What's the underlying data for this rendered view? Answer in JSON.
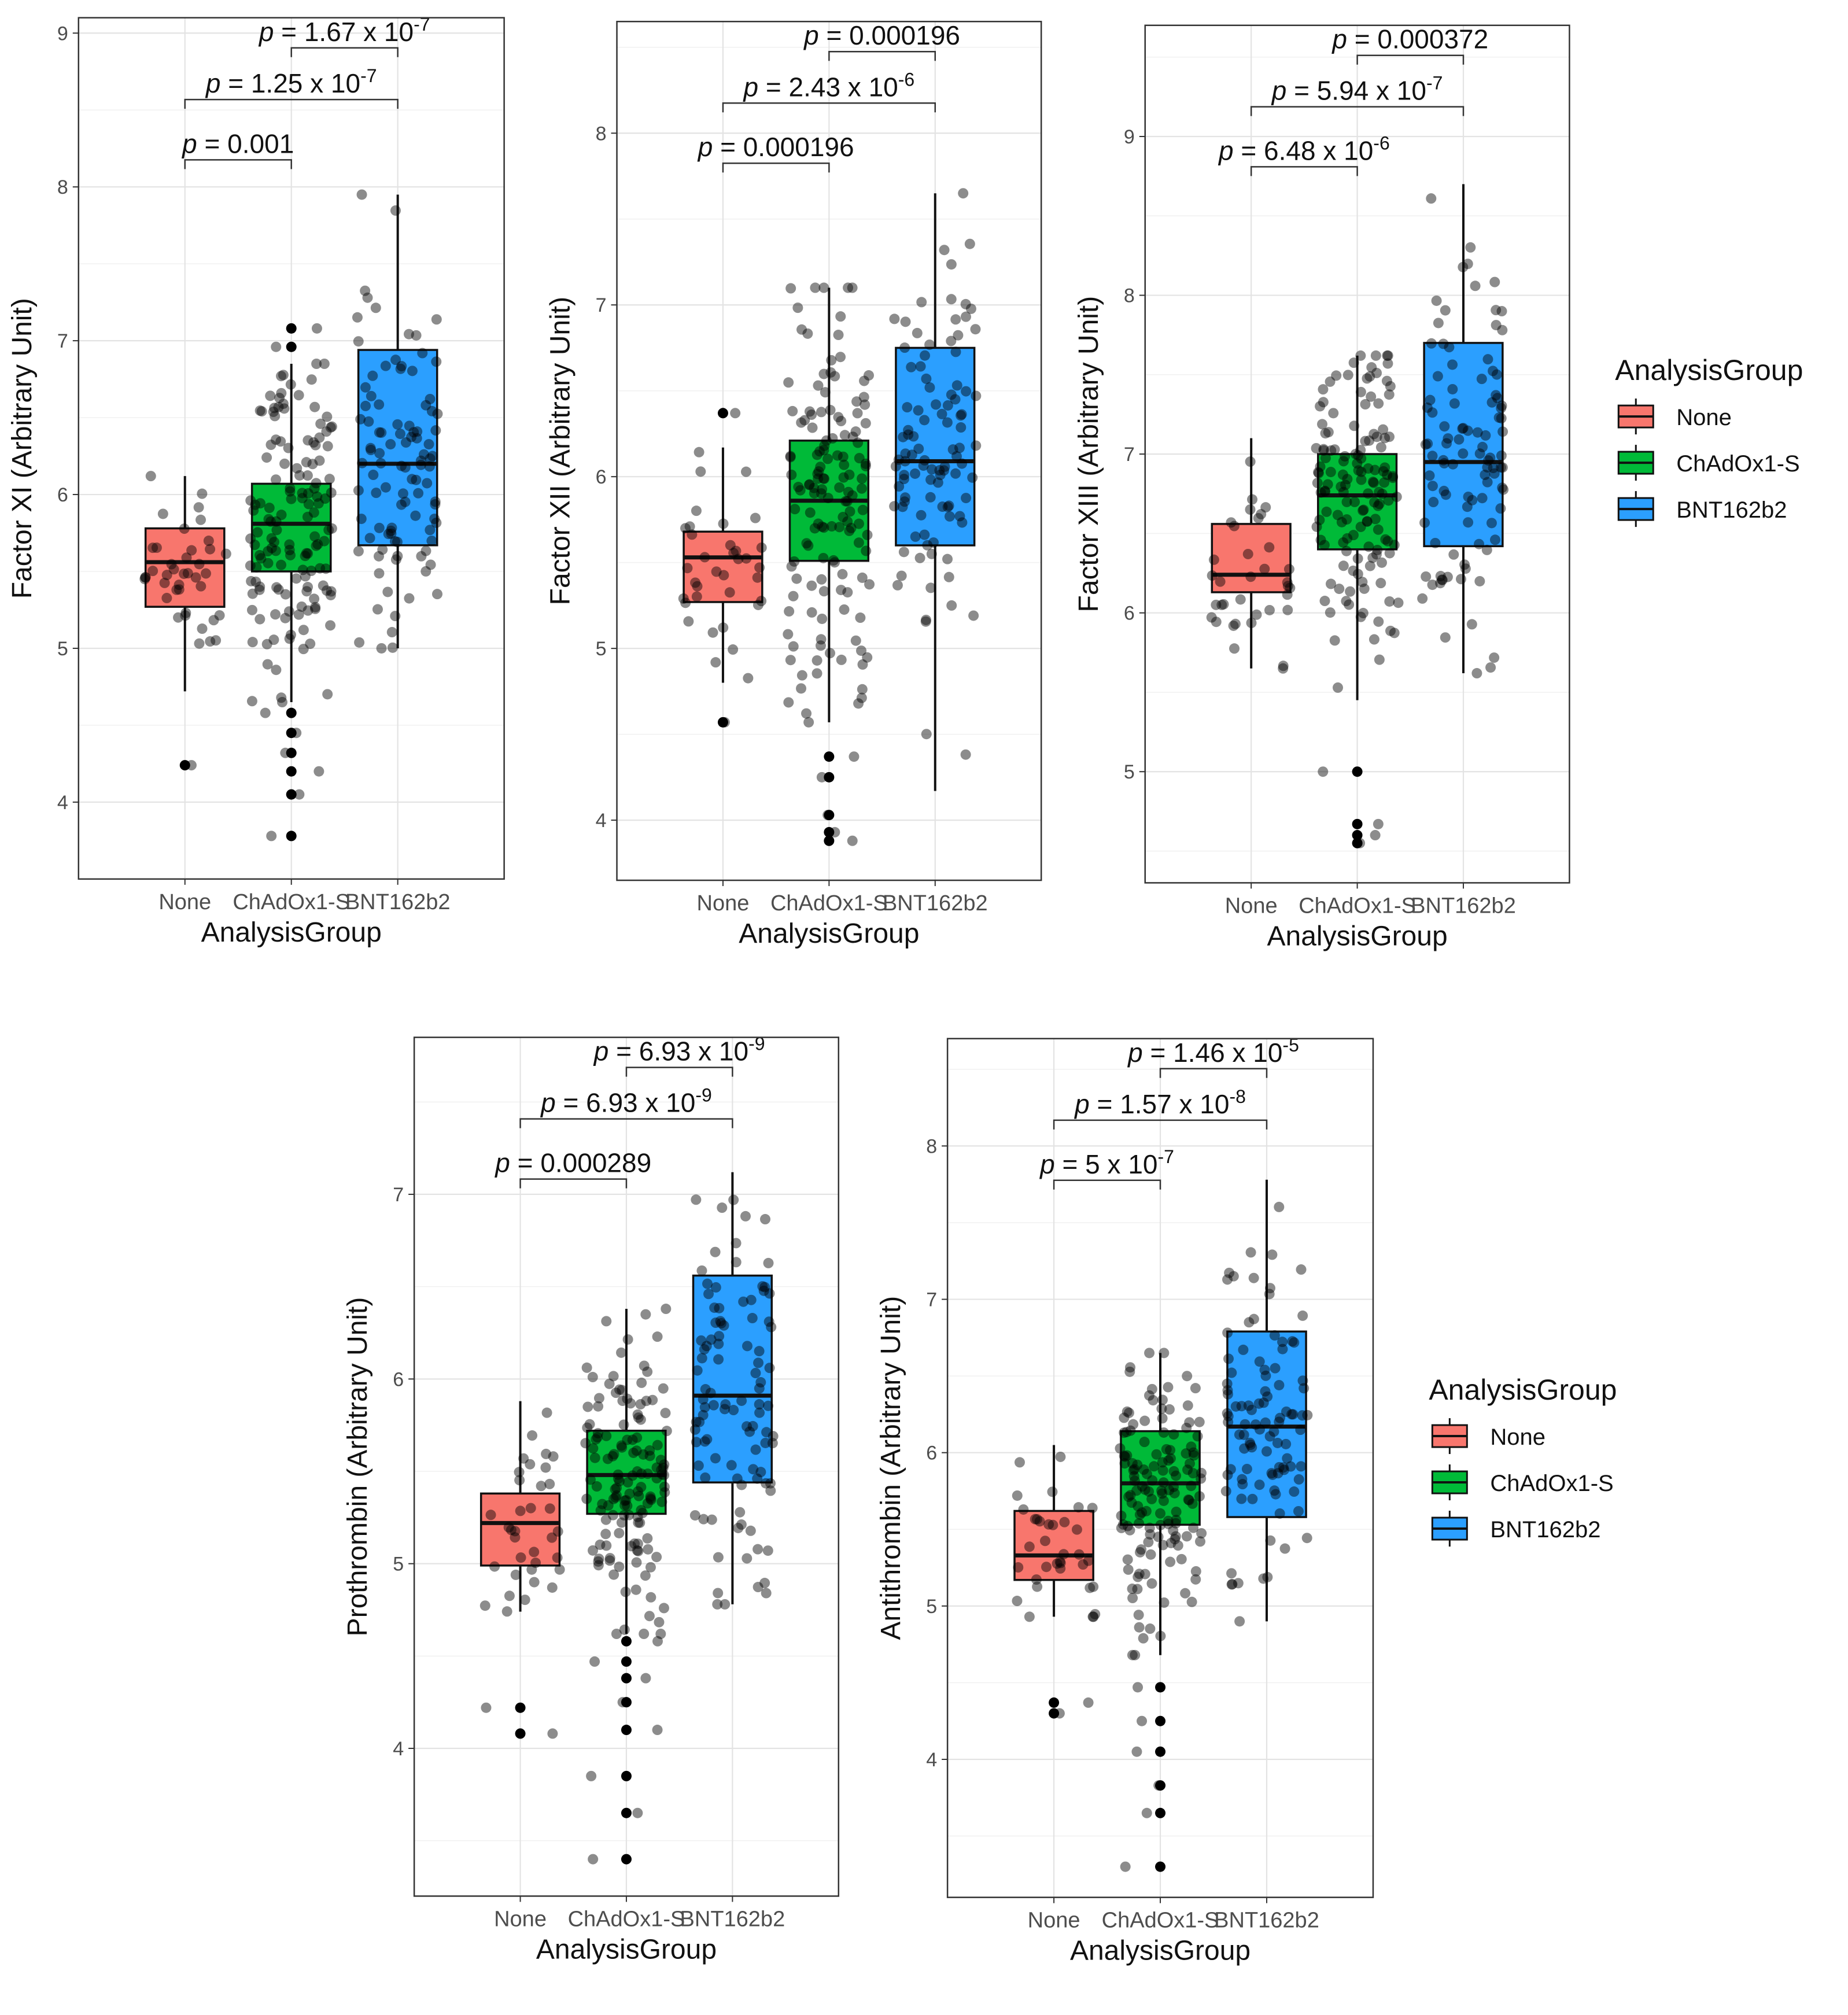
{
  "figure": {
    "x_axis_label": "AnalysisGroup",
    "legend_title": "AnalysisGroup",
    "groups": [
      "None",
      "ChAdOx1-S",
      "BNT162b2"
    ],
    "group_colors": [
      "#F8766D",
      "#00BA38",
      "#2B9FFF"
    ]
  },
  "chart_data": [
    {
      "type": "box",
      "id": "factor-xi",
      "ylabel": "Factor XI (Arbitrary Unit)",
      "xlabel": "AnalysisGroup",
      "categories": [
        "None",
        "ChAdOx1-S",
        "BNT162b2"
      ],
      "ylim": [
        3.5,
        9.1
      ],
      "yticks": [
        4,
        5,
        6,
        7,
        8,
        9
      ],
      "boxes": [
        {
          "group": "None",
          "whisker_low": 4.72,
          "q1": 5.27,
          "median": 5.56,
          "q3": 5.78,
          "whisker_high": 6.12,
          "outliers": [
            4.24
          ]
        },
        {
          "group": "ChAdOx1-S",
          "whisker_low": 4.65,
          "q1": 5.5,
          "median": 5.81,
          "q3": 6.07,
          "whisker_high": 6.85,
          "outliers": [
            4.58,
            4.45,
            4.32,
            4.2,
            4.05,
            3.78,
            7.08,
            6.96
          ]
        },
        {
          "group": "BNT162b2",
          "whisker_low": 5.0,
          "q1": 5.67,
          "median": 6.2,
          "q3": 6.94,
          "whisker_high": 7.95,
          "outliers": []
        }
      ],
      "comparisons": [
        {
          "pair": [
            "None",
            "ChAdOx1-S"
          ],
          "label_lead": "p",
          "label_text": " = 0.001",
          "label_exp": ""
        },
        {
          "pair": [
            "None",
            "BNT162b2"
          ],
          "label_lead": "p",
          "label_text": " = 1.25 x 10",
          "label_exp": "-7"
        },
        {
          "pair": [
            "ChAdOx1-S",
            "BNT162b2"
          ],
          "label_lead": "p",
          "label_text": " = 1.67 x 10",
          "label_exp": "-7"
        }
      ],
      "jitter": [
        {
          "group": "None",
          "n": 40,
          "spread": 0.32
        },
        {
          "group": "ChAdOx1-S",
          "n": 140,
          "spread": 0.5
        },
        {
          "group": "BNT162b2",
          "n": 100,
          "spread": 0.55
        }
      ]
    },
    {
      "type": "box",
      "id": "factor-xii",
      "ylabel": "Factor XII (Arbitrary Unit)",
      "xlabel": "AnalysisGroup",
      "categories": [
        "None",
        "ChAdOx1-S",
        "BNT162b2"
      ],
      "ylim": [
        3.65,
        8.65
      ],
      "yticks": [
        4,
        5,
        6,
        7,
        8
      ],
      "boxes": [
        {
          "group": "None",
          "whisker_low": 4.8,
          "q1": 5.27,
          "median": 5.53,
          "q3": 5.68,
          "whisker_high": 6.17,
          "outliers": [
            4.57,
            6.37
          ]
        },
        {
          "group": "ChAdOx1-S",
          "whisker_low": 4.57,
          "q1": 5.51,
          "median": 5.86,
          "q3": 6.21,
          "whisker_high": 7.1,
          "outliers": [
            4.37,
            4.25,
            4.03,
            3.93,
            3.88
          ]
        },
        {
          "group": "BNT162b2",
          "whisker_low": 4.17,
          "q1": 5.6,
          "median": 6.09,
          "q3": 6.75,
          "whisker_high": 7.65,
          "outliers": []
        }
      ],
      "comparisons": [
        {
          "pair": [
            "None",
            "ChAdOx1-S"
          ],
          "label_lead": "p",
          "label_text": " = 0.000196",
          "label_exp": ""
        },
        {
          "pair": [
            "None",
            "BNT162b2"
          ],
          "label_lead": "p",
          "label_text": " = 2.43 x 10",
          "label_exp": "-6"
        },
        {
          "pair": [
            "ChAdOx1-S",
            "BNT162b2"
          ],
          "label_lead": "p",
          "label_text": " = 0.000196",
          "label_exp": ""
        }
      ],
      "jitter": [
        {
          "group": "None",
          "n": 35,
          "spread": 0.3
        },
        {
          "group": "ChAdOx1-S",
          "n": 140,
          "spread": 0.55
        },
        {
          "group": "BNT162b2",
          "n": 100,
          "spread": 0.6
        }
      ]
    },
    {
      "type": "box",
      "id": "factor-xiii",
      "ylabel": "Factor XIII (Arbitrary Unit)",
      "xlabel": "AnalysisGroup",
      "categories": [
        "None",
        "ChAdOx1-S",
        "BNT162b2"
      ],
      "ylim": [
        4.3,
        9.7
      ],
      "yticks": [
        5,
        6,
        7,
        8,
        9
      ],
      "boxes": [
        {
          "group": "None",
          "whisker_low": 5.65,
          "q1": 6.13,
          "median": 6.24,
          "q3": 6.56,
          "whisker_high": 7.1,
          "outliers": []
        },
        {
          "group": "ChAdOx1-S",
          "whisker_low": 5.45,
          "q1": 6.4,
          "median": 6.74,
          "q3": 7.0,
          "whisker_high": 7.62,
          "outliers": [
            5.0,
            4.67,
            4.6,
            4.55
          ]
        },
        {
          "group": "BNT162b2",
          "whisker_low": 5.62,
          "q1": 6.42,
          "median": 6.95,
          "q3": 7.7,
          "whisker_high": 8.7,
          "outliers": []
        }
      ],
      "comparisons": [
        {
          "pair": [
            "None",
            "ChAdOx1-S"
          ],
          "label_lead": "p",
          "label_text": " = 6.48 x 10",
          "label_exp": "-6"
        },
        {
          "pair": [
            "None",
            "BNT162b2"
          ],
          "label_lead": "p",
          "label_text": " = 5.94 x 10",
          "label_exp": "-7"
        },
        {
          "pair": [
            "ChAdOx1-S",
            "BNT162b2"
          ],
          "label_lead": "p",
          "label_text": " = 0.000372",
          "label_exp": ""
        }
      ],
      "jitter": [
        {
          "group": "None",
          "n": 35,
          "spread": 0.3
        },
        {
          "group": "ChAdOx1-S",
          "n": 140,
          "spread": 0.5
        },
        {
          "group": "BNT162b2",
          "n": 100,
          "spread": 0.65
        }
      ]
    },
    {
      "type": "box",
      "id": "prothrombin",
      "ylabel": "Prothrombin (Arbitrary Unit)",
      "xlabel": "AnalysisGroup",
      "categories": [
        "None",
        "ChAdOx1-S",
        "BNT162b2"
      ],
      "ylim": [
        3.2,
        7.85
      ],
      "yticks": [
        4,
        5,
        6,
        7
      ],
      "boxes": [
        {
          "group": "None",
          "whisker_low": 4.74,
          "q1": 4.99,
          "median": 5.22,
          "q3": 5.38,
          "whisker_high": 5.88,
          "outliers": [
            4.22,
            4.08
          ]
        },
        {
          "group": "ChAdOx1-S",
          "whisker_low": 4.62,
          "q1": 5.27,
          "median": 5.48,
          "q3": 5.72,
          "whisker_high": 6.38,
          "outliers": [
            4.58,
            4.47,
            4.38,
            4.25,
            4.1,
            3.85,
            3.65,
            3.4
          ]
        },
        {
          "group": "BNT162b2",
          "whisker_low": 4.78,
          "q1": 5.44,
          "median": 5.91,
          "q3": 6.56,
          "whisker_high": 7.12,
          "outliers": []
        }
      ],
      "comparisons": [
        {
          "pair": [
            "None",
            "ChAdOx1-S"
          ],
          "label_lead": "p",
          "label_text": " = 0.000289",
          "label_exp": ""
        },
        {
          "pair": [
            "None",
            "BNT162b2"
          ],
          "label_lead": "p",
          "label_text": " = 6.93 x 10",
          "label_exp": "-9"
        },
        {
          "pair": [
            "ChAdOx1-S",
            "BNT162b2"
          ],
          "label_lead": "p",
          "label_text": " = 6.93 x 10",
          "label_exp": "-9"
        }
      ],
      "jitter": [
        {
          "group": "None",
          "n": 35,
          "spread": 0.28
        },
        {
          "group": "ChAdOx1-S",
          "n": 140,
          "spread": 0.4
        },
        {
          "group": "BNT162b2",
          "n": 100,
          "spread": 0.55
        }
      ]
    },
    {
      "type": "box",
      "id": "antithrombin",
      "ylabel": "Antithrombin (Arbitrary Unit)",
      "xlabel": "AnalysisGroup",
      "categories": [
        "None",
        "ChAdOx1-S",
        "BNT162b2"
      ],
      "ylim": [
        3.1,
        8.7
      ],
      "yticks": [
        4,
        5,
        6,
        7,
        8
      ],
      "boxes": [
        {
          "group": "None",
          "whisker_low": 4.93,
          "q1": 5.17,
          "median": 5.33,
          "q3": 5.62,
          "whisker_high": 6.05,
          "outliers": [
            4.37,
            4.3
          ]
        },
        {
          "group": "ChAdOx1-S",
          "whisker_low": 4.68,
          "q1": 5.53,
          "median": 5.8,
          "q3": 6.14,
          "whisker_high": 6.65,
          "outliers": [
            4.47,
            4.25,
            4.05,
            3.83,
            3.65,
            3.3
          ]
        },
        {
          "group": "BNT162b2",
          "whisker_low": 4.9,
          "q1": 5.58,
          "median": 6.17,
          "q3": 6.79,
          "whisker_high": 7.78,
          "outliers": []
        }
      ],
      "comparisons": [
        {
          "pair": [
            "None",
            "ChAdOx1-S"
          ],
          "label_lead": "p",
          "label_text": " = 5 x 10",
          "label_exp": "-7"
        },
        {
          "pair": [
            "None",
            "BNT162b2"
          ],
          "label_lead": "p",
          "label_text": " = 1.57 x 10",
          "label_exp": "-8"
        },
        {
          "pair": [
            "ChAdOx1-S",
            "BNT162b2"
          ],
          "label_lead": "p",
          "label_text": " = 1.46 x 10",
          "label_exp": "-5"
        }
      ],
      "jitter": [
        {
          "group": "None",
          "n": 35,
          "spread": 0.3
        },
        {
          "group": "ChAdOx1-S",
          "n": 140,
          "spread": 0.45
        },
        {
          "group": "BNT162b2",
          "n": 100,
          "spread": 0.6
        }
      ]
    }
  ]
}
